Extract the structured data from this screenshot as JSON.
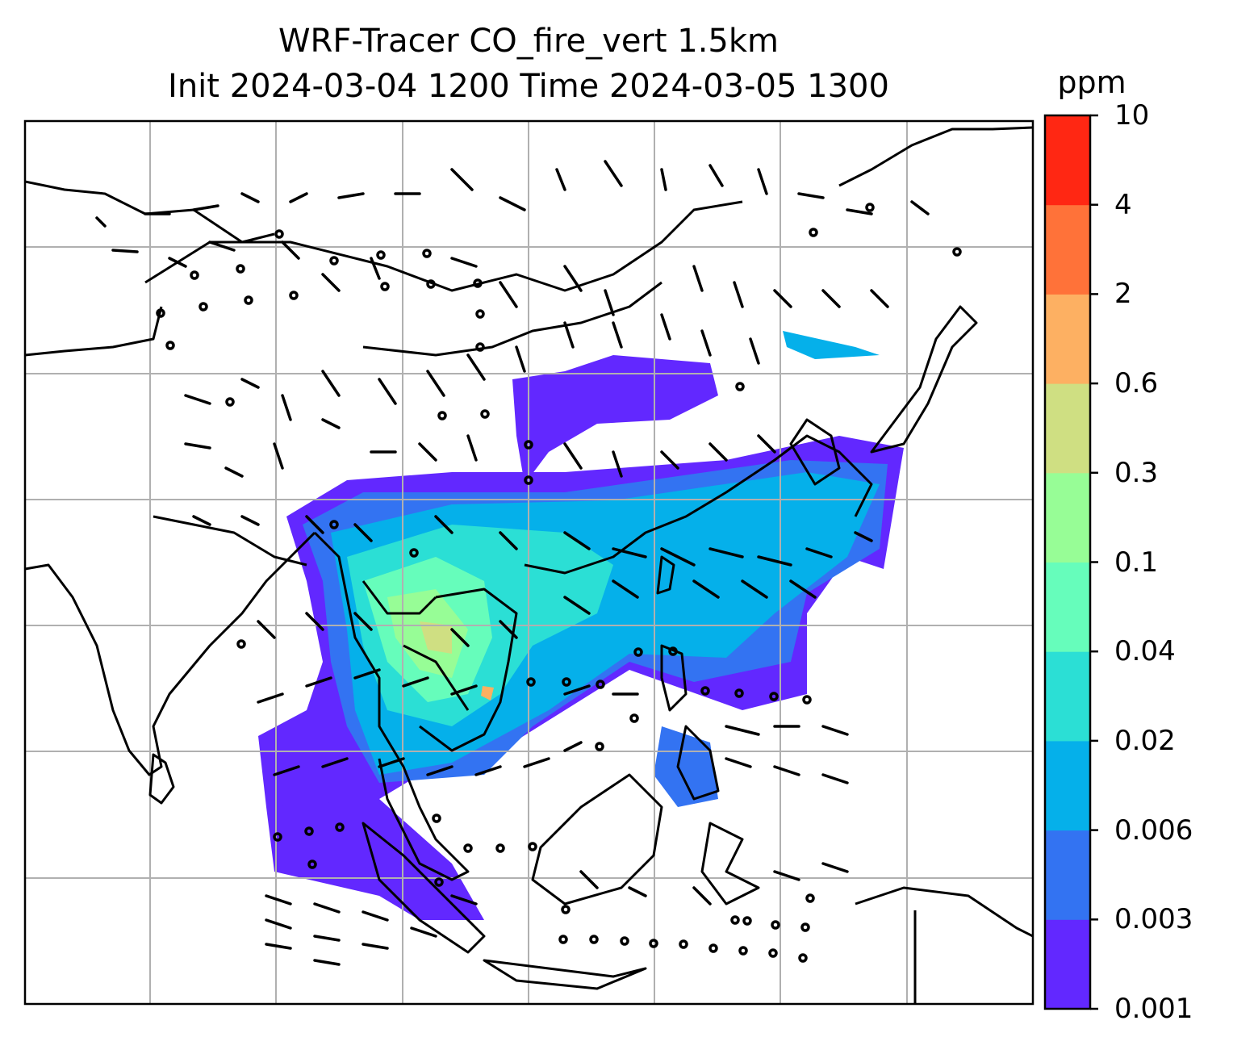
{
  "title_line1": "WRF-Tracer CO_fire_vert 1.5km",
  "title_line2": "Init 2024-03-04 1200 Time 2024-03-05 1300",
  "colorbar": {
    "unit": "ppm",
    "levels": [
      "0.001",
      "0.003",
      "0.006",
      "0.02",
      "0.04",
      "0.1",
      "0.3",
      "0.6",
      "2",
      "4",
      "10"
    ],
    "colors": [
      "#6228ff",
      "#3373f2",
      "#05b0ea",
      "#2bdfd5",
      "#66fdbb",
      "#97fd96",
      "#cfdf82",
      "#fdb062",
      "#ff7239",
      "#ff2713"
    ]
  },
  "map": {
    "variable": "CO_fire_vert",
    "level": "1.5km",
    "gridlines": true,
    "features": [
      "coastlines",
      "borders",
      "wind-barbs",
      "calm-circles"
    ]
  }
}
